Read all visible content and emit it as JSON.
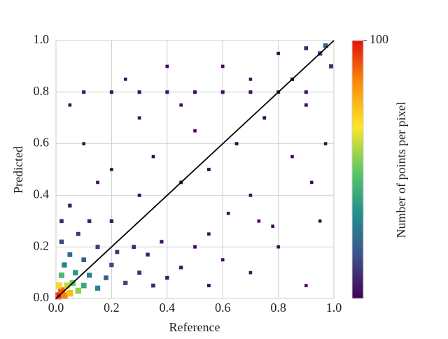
{
  "chart_data": {
    "type": "density-scatter",
    "x_label": "Reference",
    "y_label": "Predicted",
    "colorbar_label": "Number of points per pixel",
    "xlim": [
      0,
      1
    ],
    "ylim": [
      0,
      1
    ],
    "xticks": [
      {
        "value": 0,
        "label": "0.0"
      },
      0.2,
      0.4,
      0.6,
      0.8,
      {
        "value": 1,
        "label": "1.0"
      }
    ],
    "yticks": [
      {
        "value": 0,
        "label": "0.0"
      },
      0.2,
      0.4,
      0.6,
      0.8,
      {
        "value": 1,
        "label": "1.0"
      }
    ],
    "grid": true,
    "clim": [
      0,
      100
    ],
    "cticks": [
      100
    ],
    "colormap": [
      "#440154",
      "#3b528b",
      "#21918c",
      "#5ec962",
      "#fde725",
      "#f98e09",
      "#e3120b"
    ],
    "reference_line": {
      "x": [
        0,
        1
      ],
      "y": [
        0,
        1
      ],
      "color": "#000000"
    },
    "x": [
      0.01,
      0.02,
      0.03,
      0.01,
      0.05,
      0.04,
      0.06,
      0.02,
      0.08,
      0.1,
      0.07,
      0.03,
      0.12,
      0.15,
      0.05,
      0.1,
      0.18,
      0.2,
      0.02,
      0.15,
      0.25,
      0.22,
      0.08,
      0.3,
      0.28,
      0.02,
      0.35,
      0.12,
      0.33,
      0.4,
      0.05,
      0.38,
      0.2,
      0.45,
      0.5,
      0.55,
      0.6,
      0.7,
      0.8,
      0.9,
      0.95,
      0.3,
      0.45,
      0.55,
      0.65,
      0.75,
      0.85,
      0.95,
      0.97,
      0.99,
      0.9,
      0.2,
      0.1,
      0.3,
      0.4,
      0.6,
      0.8,
      0.7,
      0.85,
      0.9,
      0.5,
      0.35,
      0.15,
      0.62,
      0.78,
      0.92,
      0.25,
      0.05,
      0.45,
      0.7,
      0.2,
      0.4,
      0.6,
      0.8,
      0.1,
      0.3,
      0.5,
      0.7,
      0.9,
      0.73,
      0.97,
      0.55
    ],
    "y": [
      0.01,
      0.03,
      0.01,
      0.05,
      0.02,
      0.05,
      0.06,
      0.09,
      0.03,
      0.05,
      0.1,
      0.13,
      0.09,
      0.04,
      0.17,
      0.15,
      0.08,
      0.13,
      0.22,
      0.2,
      0.06,
      0.18,
      0.25,
      0.1,
      0.2,
      0.3,
      0.05,
      0.3,
      0.17,
      0.08,
      0.36,
      0.22,
      0.3,
      0.12,
      0.2,
      0.05,
      0.15,
      0.1,
      0.2,
      0.05,
      0.3,
      0.4,
      0.45,
      0.5,
      0.6,
      0.7,
      0.85,
      0.95,
      0.98,
      0.9,
      0.97,
      0.5,
      0.6,
      0.7,
      0.9,
      0.9,
      0.95,
      0.4,
      0.55,
      0.75,
      0.65,
      0.55,
      0.45,
      0.33,
      0.28,
      0.45,
      0.85,
      0.75,
      0.75,
      0.85,
      0.8,
      0.8,
      0.8,
      0.8,
      0.8,
      0.8,
      0.8,
      0.8,
      0.8,
      0.3,
      0.6,
      0.25
    ],
    "values": [
      100,
      90,
      85,
      70,
      75,
      60,
      50,
      45,
      55,
      40,
      35,
      30,
      28,
      30,
      22,
      20,
      20,
      15,
      15,
      12,
      14,
      10,
      10,
      9,
      7,
      8,
      8,
      6,
      6,
      5,
      5,
      4,
      5,
      4,
      2,
      2,
      1,
      1,
      1,
      1,
      1,
      2,
      2,
      2,
      2,
      2,
      3,
      15,
      20,
      10,
      8,
      1,
      1,
      1,
      1,
      1,
      2,
      1,
      1,
      2,
      1,
      1,
      1,
      1,
      1,
      1,
      1,
      1,
      1,
      1,
      3,
      3,
      3,
      3,
      3,
      3,
      3,
      3,
      3,
      1,
      1,
      1
    ]
  }
}
